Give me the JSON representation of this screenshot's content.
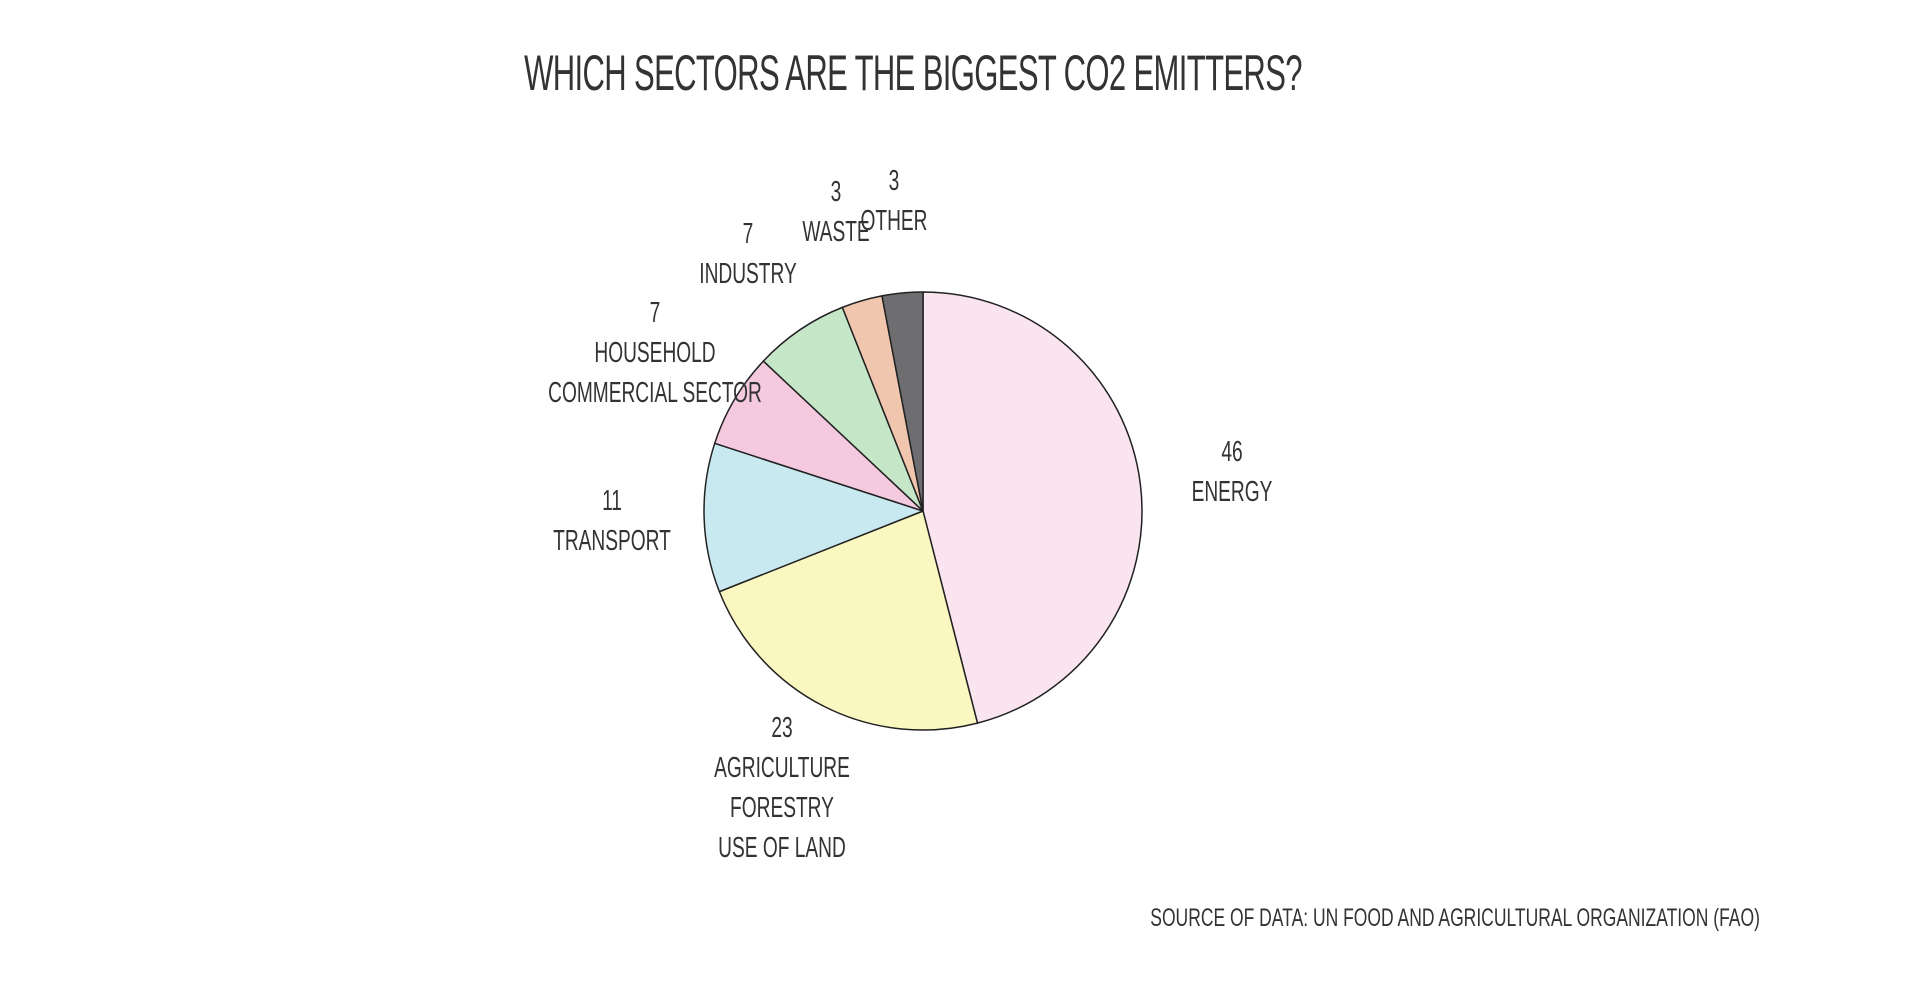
{
  "chart_data": {
    "type": "pie",
    "title": "WHICH SECTORS ARE THE BIGGEST CO2 EMITTERS?",
    "source": "SOURCE OF DATA: UN FOOD AND AGRICULTURAL ORGANIZATION (FAO)",
    "categories": [
      "ENERGY",
      "AGRICULTURE\nFORESTRY\nUSE OF LAND",
      "TRANSPORT",
      "HOUSEHOLD\nCOMMERCIAL SECTOR",
      "INDUSTRY",
      "WASTE",
      "OTHER"
    ],
    "values": [
      46,
      23,
      11,
      7,
      7,
      3,
      3
    ],
    "colors": [
      "#f9e4f0",
      "#fbf7c0",
      "#c9e9f0",
      "#f5c9de",
      "#c6e6c8",
      "#f0c6ae",
      "#6e6e71"
    ]
  }
}
